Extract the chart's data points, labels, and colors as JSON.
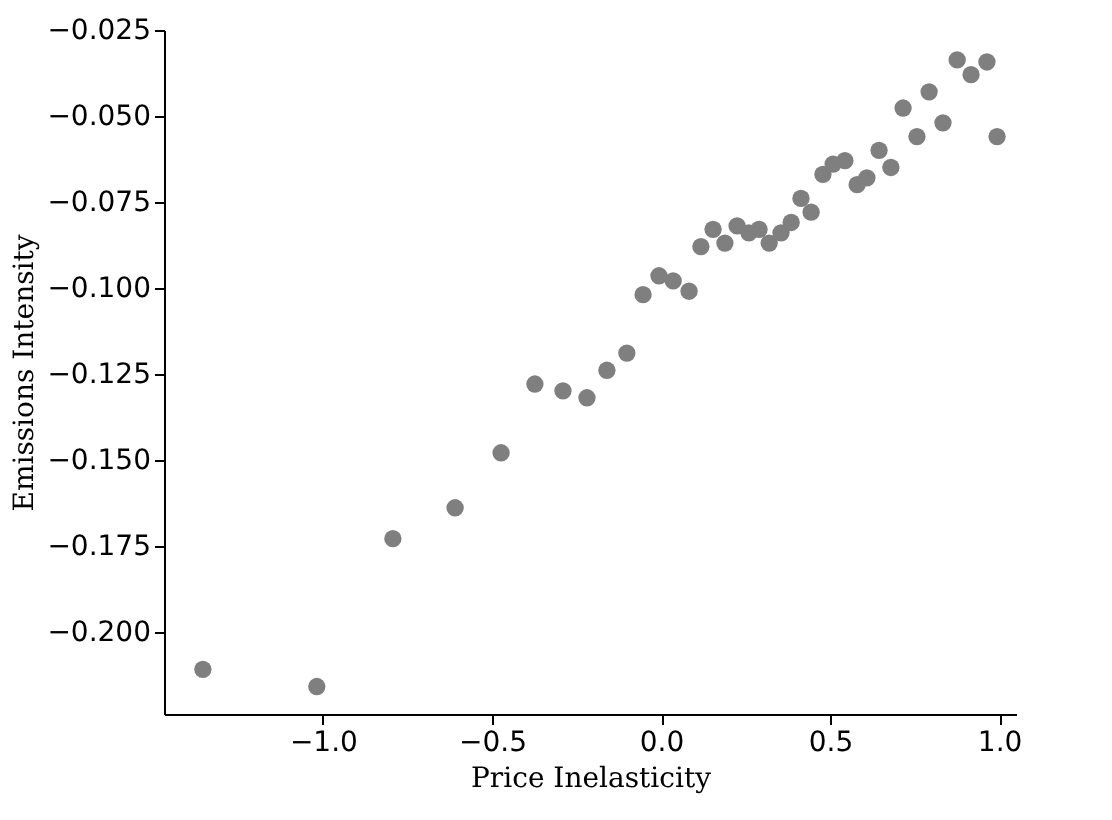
{
  "chart_data": {
    "type": "scatter",
    "xlabel": "Price Inelasticity",
    "ylabel": "Emissions Intensity",
    "x": [
      -1.355,
      -1.018,
      -0.793,
      -0.609,
      -0.473,
      -0.373,
      -0.29,
      -0.219,
      -0.16,
      -0.101,
      -0.053,
      -0.006,
      0.036,
      0.083,
      0.118,
      0.154,
      0.189,
      0.225,
      0.26,
      0.29,
      0.32,
      0.355,
      0.385,
      0.414,
      0.444,
      0.479,
      0.509,
      0.544,
      0.58,
      0.609,
      0.645,
      0.68,
      0.716,
      0.757,
      0.793,
      0.834,
      0.876,
      0.917,
      0.964,
      0.994
    ],
    "series": [
      {
        "color": "#7f7f7f",
        "values": [
          -0.211,
          -0.216,
          -0.173,
          -0.164,
          -0.148,
          -0.128,
          -0.13,
          -0.132,
          -0.124,
          -0.119,
          -0.102,
          -0.0965,
          -0.098,
          -0.101,
          -0.088,
          -0.083,
          -0.087,
          -0.082,
          -0.084,
          -0.083,
          -0.087,
          -0.084,
          -0.081,
          -0.074,
          -0.078,
          -0.067,
          -0.064,
          -0.063,
          -0.07,
          -0.068,
          -0.06,
          -0.065,
          -0.0477,
          -0.056,
          -0.043,
          -0.052,
          -0.0337,
          -0.038,
          -0.0343,
          -0.056
        ]
      }
    ],
    "xlim": [
      -1.47,
      1.05
    ],
    "ylim": [
      -0.224,
      -0.025
    ],
    "xticks": [
      {
        "value": -1.0,
        "label": "−1.0"
      },
      {
        "value": -0.5,
        "label": "−0.5"
      },
      {
        "value": 0.0,
        "label": "0.0"
      },
      {
        "value": 0.5,
        "label": "0.5"
      },
      {
        "value": 1.0,
        "label": "1.0"
      }
    ],
    "yticks": [
      {
        "value": -0.025,
        "label": "−0.025"
      },
      {
        "value": -0.05,
        "label": "−0.050"
      },
      {
        "value": -0.075,
        "label": "−0.075"
      },
      {
        "value": -0.1,
        "label": "−0.100"
      },
      {
        "value": -0.125,
        "label": "−0.125"
      },
      {
        "value": -0.15,
        "label": "−0.150"
      },
      {
        "value": -0.175,
        "label": "−0.175"
      },
      {
        "value": -0.2,
        "label": "−0.200"
      }
    ],
    "marker": "circle",
    "grid": false
  }
}
